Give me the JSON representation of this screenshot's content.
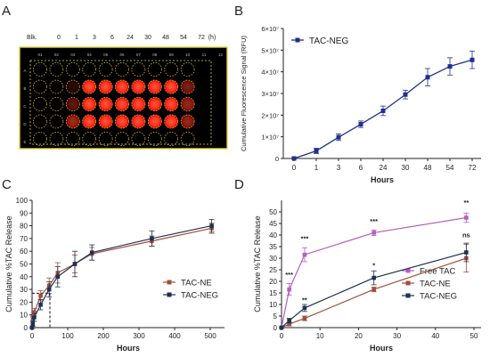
{
  "panels": {
    "A": {
      "letter": "A",
      "header_blk": "Blk.",
      "header_times": [
        "0",
        "1",
        "3",
        "6",
        "24",
        "30",
        "48",
        "54",
        "72"
      ],
      "header_unit": "(h)",
      "col_numbers": [
        "01",
        "02",
        "03",
        "04",
        "05",
        "06",
        "07",
        "08",
        "09",
        "10",
        "11",
        "12"
      ],
      "row_letters": [
        "A",
        "B",
        "C",
        "D",
        "E"
      ],
      "plate_bg": "#000000",
      "plate_border": "#e8d23a",
      "glow_color": "#ff2a1a"
    },
    "B": {
      "letter": "B"
    },
    "C": {
      "letter": "C"
    },
    "D": {
      "letter": "D"
    }
  },
  "colors": {
    "neg_blue": "#1f2f8f",
    "neg_navy": "#1e3250",
    "ne_brown": "#a0503c",
    "free_purple": "#b55ec0"
  },
  "chart_data": [
    {
      "panel": "B",
      "type": "line",
      "categories": [
        "0",
        "1",
        "3",
        "6",
        "24",
        "30",
        "48",
        "54",
        "72"
      ],
      "xlabel": "Hours",
      "ylabel": "Cumulative Fluorescence Signal (RFU)",
      "ylim": [
        0,
        60000000.0
      ],
      "yticks": [
        "0",
        "1×10⁷",
        "2×10⁷",
        "3×10⁷",
        "4×10⁷",
        "5×10⁷",
        "6×10⁷"
      ],
      "legend_position": "top-left",
      "series": [
        {
          "name": "TAC-NEG",
          "values": [
            0,
            3500000.0,
            9800000.0,
            15800000.0,
            22000000.0,
            29500000.0,
            37500000.0,
            42500000.0,
            45500000.0
          ],
          "errors": [
            0,
            1200000.0,
            1500000.0,
            1500000.0,
            2200000.0,
            2000000.0,
            4000000.0,
            4000000.0,
            4000000.0
          ],
          "color": "#1f2f8f"
        }
      ]
    },
    {
      "panel": "C",
      "type": "line",
      "xlabel": "Hours",
      "ylabel": "Cumulative %TAC Release",
      "xlim": [
        0,
        520
      ],
      "ylim": [
        0,
        100
      ],
      "xticks": [
        0,
        100,
        200,
        300,
        400,
        500
      ],
      "yticks": [
        0,
        10,
        20,
        30,
        40,
        50,
        60,
        70,
        80,
        90,
        100
      ],
      "legend_position": "bottom-right",
      "series": [
        {
          "name": "TAC-NE",
          "color": "#a0503c",
          "x": [
            0,
            2,
            6,
            24,
            48,
            72,
            120,
            168,
            336,
            504
          ],
          "y": [
            0,
            7,
            12,
            25,
            33,
            43,
            50,
            58,
            68,
            78
          ],
          "errors": [
            0,
            2,
            3,
            4,
            6,
            8,
            7,
            5,
            4,
            4
          ]
        },
        {
          "name": "TAC-NEG",
          "color": "#1e3250",
          "x": [
            0,
            2,
            6,
            24,
            48,
            72,
            120,
            168,
            336,
            504
          ],
          "y": [
            0,
            3,
            8,
            18,
            30,
            40,
            50,
            59,
            70,
            80
          ],
          "errors": [
            0,
            2,
            3,
            4,
            6,
            8,
            10,
            6,
            6,
            5
          ]
        }
      ]
    },
    {
      "panel": "D",
      "type": "line",
      "xlabel": "Hours",
      "ylabel": "Cumulative %TAC Release",
      "xlim": [
        0,
        50
      ],
      "ylim": [
        0,
        55
      ],
      "xticks": [
        0,
        10,
        20,
        30,
        40,
        50
      ],
      "yticks": [
        0,
        5,
        10,
        15,
        20,
        25,
        30,
        35,
        40,
        45,
        50
      ],
      "legend_position": "bottom-right",
      "annotations": [
        {
          "x": 2,
          "y": 22,
          "text": "***"
        },
        {
          "x": 6,
          "y": 37.5,
          "text": "***"
        },
        {
          "x": 6,
          "y": 11,
          "text": "**"
        },
        {
          "x": 24,
          "y": 45,
          "text": "***"
        },
        {
          "x": 24,
          "y": 26,
          "text": "*"
        },
        {
          "x": 48,
          "y": 53,
          "text": "**"
        },
        {
          "x": 48,
          "y": 39,
          "text": "ns"
        }
      ],
      "series": [
        {
          "name": "Free TAC",
          "color": "#b55ec0",
          "x": [
            0,
            2,
            6,
            24,
            48
          ],
          "y": [
            0,
            16.5,
            31.5,
            41,
            47.5
          ],
          "errors": [
            0,
            2.5,
            3,
            1.2,
            2
          ]
        },
        {
          "name": "TAC-NE",
          "color": "#a0503c",
          "x": [
            0,
            2,
            6,
            24,
            48
          ],
          "y": [
            0,
            1.5,
            4,
            16.5,
            30
          ],
          "errors": [
            0,
            0.8,
            1,
            1,
            6
          ]
        },
        {
          "name": "TAC-NEG",
          "color": "#1e3250",
          "x": [
            0,
            2,
            6,
            24,
            48
          ],
          "y": [
            0,
            3,
            8.5,
            21.5,
            32.5
          ],
          "errors": [
            0,
            1,
            1.5,
            3,
            4
          ]
        }
      ]
    }
  ]
}
